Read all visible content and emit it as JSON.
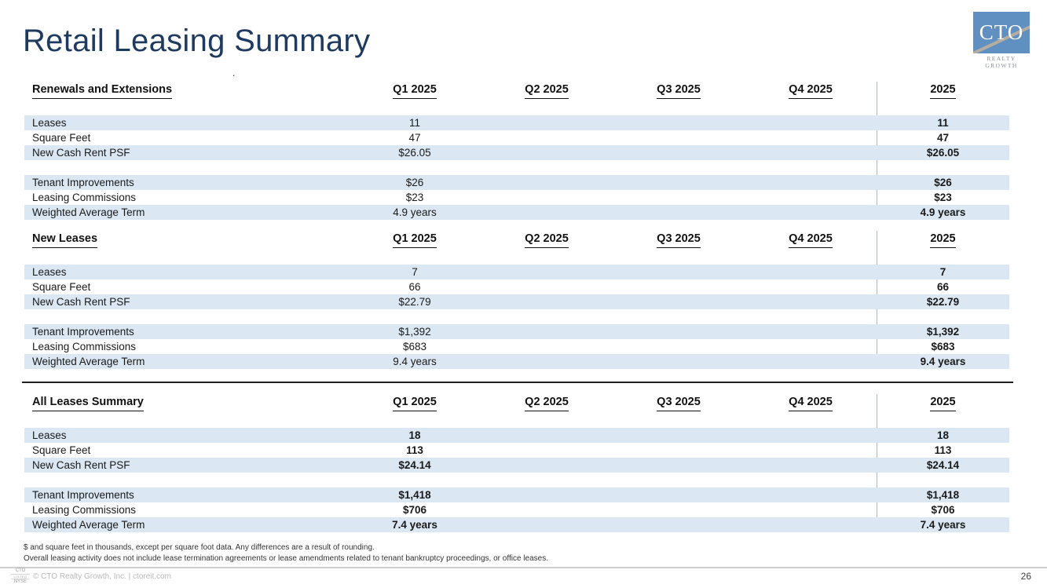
{
  "page": {
    "title": "Retail Leasing Summary",
    "stray_dot": ".",
    "page_number": "26",
    "footnotes": [
      "$ and square feet in thousands, except per square foot data. Any differences are a result of rounding.",
      "Overall leasing activity does not include lease termination agreements or lease amendments related to tenant bankruptcy proceedings, or office leases."
    ],
    "footer": {
      "copyright": "© CTO Realty Growth, Inc. | ctoreit.com",
      "nyse_badge": {
        "line1": "CTO",
        "line2": "LISTED",
        "line3": "NYSE"
      }
    },
    "logo": {
      "text": "CTO",
      "subtext": "REALTY GROWTH"
    }
  },
  "columns": [
    "Q1 2025",
    "Q2 2025",
    "Q3 2025",
    "Q4 2025"
  ],
  "total_column": "2025",
  "tables": [
    {
      "title": "Renewals and Extensions",
      "bold_values": false,
      "rows": [
        {
          "label": "Leases",
          "q1": "11",
          "q2": "",
          "q3": "",
          "q4": "",
          "total": "11"
        },
        {
          "label": "Square Feet",
          "q1": "47",
          "q2": "",
          "q3": "",
          "q4": "",
          "total": "47"
        },
        {
          "label": "New Cash Rent PSF",
          "q1": "$26.05",
          "q2": "",
          "q3": "",
          "q4": "",
          "total": "$26.05"
        },
        {
          "label": "",
          "q1": "",
          "q2": "",
          "q3": "",
          "q4": "",
          "total": ""
        },
        {
          "label": "Tenant Improvements",
          "q1": "$26",
          "q2": "",
          "q3": "",
          "q4": "",
          "total": "$26"
        },
        {
          "label": "Leasing Commissions",
          "q1": "$23",
          "q2": "",
          "q3": "",
          "q4": "",
          "total": "$23"
        },
        {
          "label": "Weighted Average Term",
          "q1": "4.9 years",
          "q2": "",
          "q3": "",
          "q4": "",
          "total": "4.9 years"
        }
      ]
    },
    {
      "title": "New Leases",
      "bold_values": false,
      "rows": [
        {
          "label": "Leases",
          "q1": "7",
          "q2": "",
          "q3": "",
          "q4": "",
          "total": "7"
        },
        {
          "label": "Square Feet",
          "q1": "66",
          "q2": "",
          "q3": "",
          "q4": "",
          "total": "66"
        },
        {
          "label": "New Cash Rent PSF",
          "q1": "$22.79",
          "q2": "",
          "q3": "",
          "q4": "",
          "total": "$22.79"
        },
        {
          "label": "",
          "q1": "",
          "q2": "",
          "q3": "",
          "q4": "",
          "total": ""
        },
        {
          "label": "Tenant Improvements",
          "q1": "$1,392",
          "q2": "",
          "q3": "",
          "q4": "",
          "total": "$1,392"
        },
        {
          "label": "Leasing Commissions",
          "q1": "$683",
          "q2": "",
          "q3": "",
          "q4": "",
          "total": "$683"
        },
        {
          "label": "Weighted Average Term",
          "q1": "9.4 years",
          "q2": "",
          "q3": "",
          "q4": "",
          "total": "9.4 years"
        }
      ]
    },
    {
      "title": "All Leases Summary",
      "bold_values": true,
      "rows": [
        {
          "label": "Leases",
          "q1": "18",
          "q2": "",
          "q3": "",
          "q4": "",
          "total": "18"
        },
        {
          "label": "Square Feet",
          "q1": "113",
          "q2": "",
          "q3": "",
          "q4": "",
          "total": "113"
        },
        {
          "label": "New Cash Rent PSF",
          "q1": "$24.14",
          "q2": "",
          "q3": "",
          "q4": "",
          "total": "$24.14"
        },
        {
          "label": "",
          "q1": "",
          "q2": "",
          "q3": "",
          "q4": "",
          "total": ""
        },
        {
          "label": "Tenant Improvements",
          "q1": "$1,418",
          "q2": "",
          "q3": "",
          "q4": "",
          "total": "$1,418"
        },
        {
          "label": "Leasing Commissions",
          "q1": "$706",
          "q2": "",
          "q3": "",
          "q4": "",
          "total": "$706"
        },
        {
          "label": "Weighted Average Term",
          "q1": "7.4 years",
          "q2": "",
          "q3": "",
          "q4": "",
          "total": "7.4 years"
        }
      ]
    }
  ],
  "colors": {
    "title_navy": "#1e3a5f",
    "row_shade_blue": "#dbe7f3",
    "logo_blue": "#6090c2",
    "divider_gray": "#b0b6bd",
    "footer_line_gray": "#cfcfcf"
  }
}
